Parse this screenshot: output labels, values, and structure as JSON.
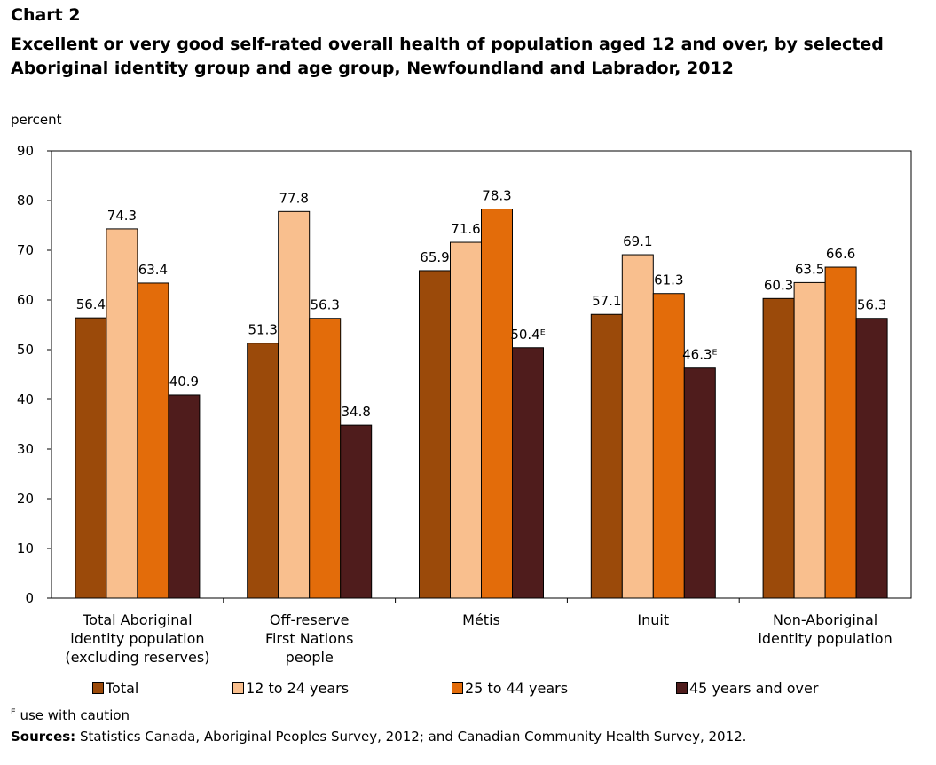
{
  "header": {
    "chart_label": "Chart 2",
    "title": "Excellent or very good self-rated overall health of population aged 12 and over, by selected Aboriginal identity group and age group, Newfoundland and Labrador, 2012",
    "unit": "percent"
  },
  "colors": {
    "total": "#9b4a0a",
    "age_12_24": "#f9bf8e",
    "age_25_44": "#e36c0a",
    "age_45_over": "#4f1c1c",
    "axis": "#000000"
  },
  "chart_data": {
    "type": "bar",
    "categories": [
      "Total Aboriginal\nidentity population\n(excluding reserves)",
      "Off-reserve\nFirst Nations\npeople",
      "Métis",
      "Inuit",
      "Non-Aboriginal\nidentity population"
    ],
    "series": [
      {
        "name": "Total",
        "values": [
          56.4,
          51.3,
          65.9,
          57.1,
          60.3
        ]
      },
      {
        "name": "12 to 24 years",
        "values": [
          74.3,
          77.8,
          71.6,
          69.1,
          63.5
        ]
      },
      {
        "name": "25 to 44 years",
        "values": [
          63.4,
          56.3,
          78.3,
          61.3,
          66.6
        ]
      },
      {
        "name": "45 years and over",
        "values": [
          40.9,
          34.8,
          50.4,
          46.3,
          56.3
        ]
      }
    ],
    "data_labels": [
      [
        "56.4",
        "74.3",
        "63.4",
        "40.9"
      ],
      [
        "51.3",
        "77.8",
        "56.3",
        "34.8"
      ],
      [
        "65.9",
        "71.6",
        "78.3",
        "50.4ᴱ"
      ],
      [
        "57.1",
        "69.1",
        "61.3",
        "46.3ᴱ"
      ],
      [
        "60.3",
        "63.5",
        "66.6",
        "56.3"
      ]
    ],
    "ylim": [
      0,
      90
    ],
    "yticks": [
      0,
      10,
      20,
      30,
      40,
      50,
      60,
      70,
      80,
      90
    ],
    "ylabel": "percent",
    "xlabel": "",
    "grid": false,
    "legend_position": "bottom"
  },
  "legend": {
    "items": [
      "Total",
      "12 to 24 years",
      "25 to 44 years",
      "45 years and over"
    ]
  },
  "footnote": {
    "marker": "E",
    "text": " use with caution"
  },
  "sources": {
    "label": "Sources:",
    "text": " Statistics Canada, Aboriginal Peoples Survey, 2012; and Canadian Community Health Survey, 2012."
  }
}
